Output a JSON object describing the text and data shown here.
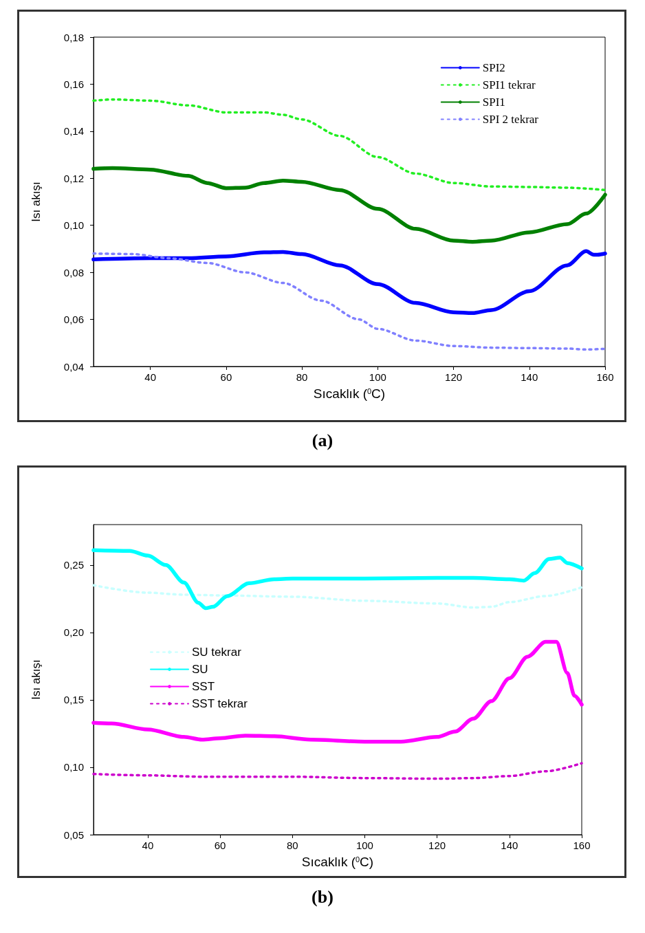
{
  "chart_data": [
    {
      "type": "line",
      "xlabel": "Sıcaklık ($^{0}$C)",
      "ylabel": "Isı akışı",
      "annotations": [
        "(a)"
      ],
      "xlim": [
        25,
        160
      ],
      "xticks": [
        40,
        60,
        80,
        100,
        120,
        140,
        160
      ],
      "ylim": [
        0.04,
        0.18
      ],
      "yticks": [
        {
          "value": 0.04,
          "label": "0,04"
        },
        {
          "value": 0.06,
          "label": "0,06"
        },
        {
          "value": 0.08,
          "label": "0,08"
        },
        {
          "value": 0.1,
          "label": "0,10"
        },
        {
          "value": 0.12,
          "label": "0,12"
        },
        {
          "value": 0.14,
          "label": "0,14"
        },
        {
          "value": 0.16,
          "label": "0,16"
        },
        {
          "value": 0.18,
          "label": "0,18"
        }
      ],
      "grid": false,
      "legend": "top right",
      "marker": "none",
      "series": [
        {
          "name": "SPI2",
          "color": "#0000ff",
          "line_style": "solid",
          "x": [
            25,
            40,
            50,
            60,
            70,
            75,
            80,
            90,
            100,
            110,
            120,
            125,
            130,
            140,
            150,
            155,
            157,
            158,
            160
          ],
          "values": [
            0.0855,
            0.086,
            0.086,
            0.0868,
            0.0885,
            0.0887,
            0.0878,
            0.083,
            0.075,
            0.067,
            0.063,
            0.0627,
            0.064,
            0.072,
            0.083,
            0.089,
            0.0875,
            0.0875,
            0.088
          ]
        },
        {
          "name": "SPI1 tekrar",
          "color": "#22ee22",
          "line_style": "dotted",
          "x": [
            25,
            30,
            40,
            50,
            60,
            70,
            75,
            80,
            90,
            100,
            110,
            120,
            130,
            140,
            150,
            160
          ],
          "values": [
            0.153,
            0.1535,
            0.153,
            0.151,
            0.148,
            0.148,
            0.147,
            0.145,
            0.138,
            0.129,
            0.122,
            0.118,
            0.1165,
            0.1163,
            0.116,
            0.115
          ]
        },
        {
          "name": "SPI1",
          "color": "#008000",
          "line_style": "solid",
          "x": [
            25,
            30,
            40,
            50,
            55,
            60,
            65,
            70,
            75,
            80,
            90,
            100,
            110,
            120,
            125,
            130,
            140,
            150,
            155,
            160
          ],
          "values": [
            0.124,
            0.1243,
            0.1237,
            0.121,
            0.118,
            0.1158,
            0.116,
            0.118,
            0.119,
            0.1185,
            0.115,
            0.107,
            0.0985,
            0.0935,
            0.093,
            0.0935,
            0.097,
            0.1005,
            0.105,
            0.113
          ]
        },
        {
          "name": "SPI 2 tekrar",
          "color": "#8080ff",
          "line_style": "dotted",
          "x": [
            25,
            35,
            45,
            55,
            65,
            75,
            85,
            95,
            100,
            110,
            120,
            130,
            140,
            150,
            155,
            160
          ],
          "values": [
            0.088,
            0.0878,
            0.086,
            0.084,
            0.08,
            0.0755,
            0.068,
            0.06,
            0.056,
            0.051,
            0.0487,
            0.048,
            0.0478,
            0.0476,
            0.0472,
            0.0475
          ]
        }
      ]
    },
    {
      "type": "line",
      "xlabel": "Sıcaklık ($^{0}$C)",
      "ylabel": "Isı akışı",
      "annotations": [
        "(b)"
      ],
      "xlim": [
        25,
        160
      ],
      "xticks": [
        40,
        60,
        80,
        100,
        120,
        140,
        160
      ],
      "ylim": [
        0.05,
        0.28
      ],
      "yticks": [
        {
          "value": 0.05,
          "label": "0,05"
        },
        {
          "value": 0.1,
          "label": "0,10"
        },
        {
          "value": 0.15,
          "label": "0,15"
        },
        {
          "value": 0.2,
          "label": "0,20"
        },
        {
          "value": 0.25,
          "label": "0,25"
        }
      ],
      "grid": false,
      "legend": "left",
      "marker": "none",
      "series": [
        {
          "name": "SU tekrar",
          "color": "#c8ffff",
          "line_style": "dotted",
          "x": [
            25,
            40,
            50,
            60,
            80,
            100,
            120,
            130,
            135,
            140,
            150,
            160
          ],
          "values": [
            0.235,
            0.2295,
            0.228,
            0.2275,
            0.2265,
            0.2235,
            0.2215,
            0.2185,
            0.219,
            0.2225,
            0.227,
            0.2335
          ]
        },
        {
          "name": "SU",
          "color": "#00ffff",
          "line_style": "solid",
          "x": [
            25,
            35,
            40,
            45,
            50,
            54,
            56,
            58,
            62,
            68,
            75,
            80,
            100,
            120,
            130,
            140,
            144,
            147,
            151,
            154,
            156,
            160
          ],
          "values": [
            0.261,
            0.2605,
            0.257,
            0.25,
            0.237,
            0.222,
            0.218,
            0.219,
            0.227,
            0.2365,
            0.2395,
            0.24,
            0.24,
            0.2405,
            0.2405,
            0.2395,
            0.2385,
            0.244,
            0.2545,
            0.2555,
            0.2515,
            0.2475
          ]
        },
        {
          "name": "SST",
          "color": "#ff00ff",
          "line_style": "solid",
          "x": [
            25,
            30,
            40,
            50,
            55,
            60,
            67,
            75,
            85,
            100,
            110,
            120,
            125,
            130,
            135,
            140,
            145,
            150,
            153,
            156,
            158,
            160
          ],
          "values": [
            0.133,
            0.1325,
            0.128,
            0.1225,
            0.1205,
            0.1215,
            0.1235,
            0.123,
            0.1205,
            0.119,
            0.119,
            0.1225,
            0.1265,
            0.136,
            0.149,
            0.166,
            0.182,
            0.193,
            0.193,
            0.17,
            0.153,
            0.1465
          ]
        },
        {
          "name": "SST tekrar",
          "color": "#cc00cc",
          "line_style": "dotted",
          "x": [
            25,
            40,
            55,
            80,
            100,
            120,
            130,
            140,
            150,
            160
          ],
          "values": [
            0.095,
            0.094,
            0.093,
            0.093,
            0.092,
            0.0915,
            0.092,
            0.0935,
            0.097,
            0.103
          ]
        }
      ]
    }
  ]
}
